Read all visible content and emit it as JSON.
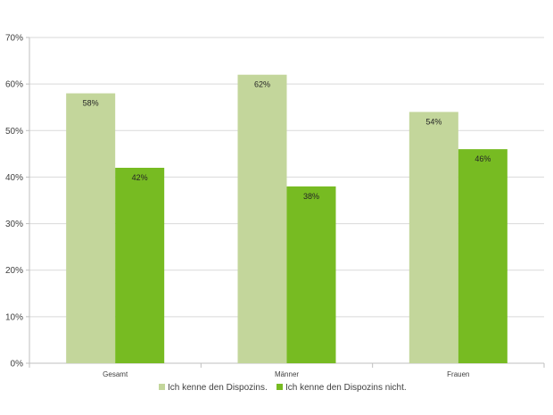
{
  "chart_data": {
    "type": "bar",
    "categories": [
      "Gesamt",
      "Männer",
      "Frauen"
    ],
    "series": [
      {
        "name": "Ich kenne den Dispozins.",
        "values": [
          58,
          62,
          54
        ],
        "labels": [
          "58%",
          "62%",
          "54%"
        ],
        "color": "#c3d69b"
      },
      {
        "name": "Ich kenne den Dispozins nicht.",
        "values": [
          42,
          38,
          46
        ],
        "labels": [
          "42%",
          "38%",
          "46%"
        ],
        "color": "#77bb22"
      }
    ],
    "yticks": [
      "0%",
      "10%",
      "20%",
      "30%",
      "40%",
      "50%",
      "60%",
      "70%"
    ],
    "ylim": [
      0,
      70
    ],
    "grid": true,
    "legend_position": "bottom",
    "title": "",
    "xlabel": "",
    "ylabel": ""
  }
}
